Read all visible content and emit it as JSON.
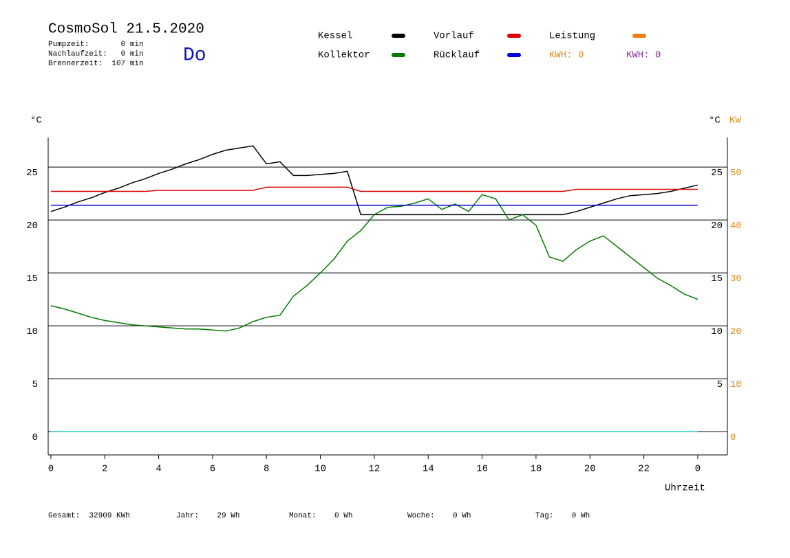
{
  "header": {
    "title": "CosmoSol 21.5.2020",
    "day": "Do",
    "stats": [
      "Pumpzeit:       0 min",
      "Nachlaufzeit:   0 min",
      "Brennerzeit:  107 min"
    ]
  },
  "kwh_labels": [
    {
      "text": "KWH: 0",
      "color": "#e08a1a"
    },
    {
      "text": "KWH: 0",
      "color": "#8a2a9a"
    }
  ],
  "footer": [
    "Gesamt:  32909 KWh",
    "Jahr:    29 Wh",
    "Monat:    0 Wh",
    "Woche:    0 Wh",
    "Tag:    0 Wh"
  ],
  "chart_data": {
    "type": "line",
    "y_label": "°C",
    "y2_unit_label": "°C",
    "y2_label": "KW",
    "x_label": "Uhrzeit",
    "x": [
      0,
      0.5,
      1,
      1.5,
      2,
      2.5,
      3,
      3.5,
      4,
      4.5,
      5,
      5.5,
      6,
      6.5,
      7,
      7.5,
      8,
      8.5,
      9,
      9.5,
      10,
      10.5,
      11,
      11.5,
      12,
      12.5,
      13,
      13.5,
      14,
      14.5,
      15,
      15.5,
      16,
      16.5,
      17,
      17.5,
      18,
      18.5,
      19,
      19.5,
      20,
      20.5,
      21,
      21.5,
      22,
      22.5,
      23,
      23.5,
      24
    ],
    "xlim": [
      -0.1,
      25.1
    ],
    "xticks": [
      0,
      2,
      4,
      6,
      8,
      10,
      12,
      14,
      16,
      18,
      20,
      22,
      {
        "value": 24,
        "label": "0"
      }
    ],
    "ylim": [
      -2.2,
      27.8
    ],
    "yticks": [
      0,
      5,
      10,
      15,
      20,
      25
    ],
    "yticks_right": [
      5,
      10,
      15,
      20,
      25
    ],
    "y2lim": [
      -4.4,
      55.6
    ],
    "y2ticks": [
      0,
      10,
      20,
      30,
      40,
      50
    ],
    "grid": true,
    "series": [
      {
        "name": "Kessel",
        "color": "#000000",
        "values": [
          20.8,
          21.2,
          21.7,
          22.1,
          22.6,
          23.0,
          23.5,
          23.9,
          24.4,
          24.8,
          25.3,
          25.7,
          26.2,
          26.6,
          26.8,
          27.0,
          25.3,
          25.5,
          24.2,
          24.2,
          24.3,
          24.4,
          24.6,
          20.5,
          20.5,
          20.5,
          20.5,
          20.5,
          20.5,
          20.5,
          20.5,
          20.5,
          20.5,
          20.5,
          20.5,
          20.5,
          20.5,
          20.5,
          20.5,
          20.8,
          21.2,
          21.6,
          22.0,
          22.3,
          22.4,
          22.5,
          22.7,
          23.0,
          23.3
        ]
      },
      {
        "name": "Kollektor",
        "color": "#007a00",
        "values": [
          11.9,
          11.6,
          11.2,
          10.8,
          10.5,
          10.3,
          10.1,
          10.0,
          9.9,
          9.8,
          9.7,
          9.7,
          9.6,
          9.5,
          9.8,
          10.4,
          10.8,
          11.0,
          12.8,
          13.8,
          15.0,
          16.3,
          18.0,
          19.0,
          20.5,
          21.2,
          21.3,
          21.6,
          22.0,
          21.0,
          21.5,
          20.8,
          22.4,
          22.0,
          20.0,
          20.5,
          19.5,
          16.5,
          16.1,
          17.2,
          18.0,
          18.5,
          17.5,
          16.5,
          15.5,
          14.5,
          13.8,
          13.0,
          12.5
        ]
      },
      {
        "name": "Vorlauf",
        "color": "#e00000",
        "values": [
          22.7,
          22.7,
          22.7,
          22.7,
          22.7,
          22.7,
          22.7,
          22.7,
          22.8,
          22.8,
          22.8,
          22.8,
          22.8,
          22.8,
          22.8,
          22.8,
          23.1,
          23.1,
          23.1,
          23.1,
          23.1,
          23.1,
          23.1,
          22.7,
          22.7,
          22.7,
          22.7,
          22.7,
          22.7,
          22.7,
          22.7,
          22.7,
          22.7,
          22.7,
          22.7,
          22.7,
          22.7,
          22.7,
          22.7,
          22.9,
          22.9,
          22.9,
          22.9,
          22.9,
          22.9,
          22.9,
          22.9,
          22.9,
          22.9
        ]
      },
      {
        "name": "Rücklauf",
        "color": "#0000e0",
        "values": [
          21.4,
          21.4,
          21.4,
          21.4,
          21.4,
          21.4,
          21.4,
          21.4,
          21.4,
          21.4,
          21.4,
          21.4,
          21.4,
          21.4,
          21.4,
          21.4,
          21.4,
          21.4,
          21.4,
          21.4,
          21.4,
          21.4,
          21.4,
          21.4,
          21.4,
          21.4,
          21.4,
          21.4,
          21.4,
          21.4,
          21.4,
          21.4,
          21.4,
          21.4,
          21.4,
          21.4,
          21.4,
          21.4,
          21.4,
          21.4,
          21.4,
          21.4,
          21.4,
          21.4,
          21.4,
          21.4,
          21.4,
          21.4,
          21.4
        ]
      },
      {
        "name": "Leistung",
        "color": "#f08010",
        "axis": "y2",
        "values": [
          null,
          null,
          null,
          null,
          null,
          null,
          null,
          null,
          null,
          null,
          null,
          null,
          null,
          null,
          null,
          null,
          null,
          null,
          null,
          null,
          null,
          null,
          null,
          null,
          null,
          null,
          null,
          null,
          null,
          null,
          null,
          null,
          null,
          null,
          null,
          null,
          null,
          null,
          null,
          null,
          null,
          null,
          null,
          null,
          null,
          null,
          null,
          null,
          null
        ]
      },
      {
        "color": "#20d0d0",
        "values": [
          0,
          0,
          0,
          0,
          0,
          0,
          0,
          0,
          0,
          0,
          0,
          0,
          0,
          0,
          0,
          0,
          0,
          0,
          0,
          0,
          0,
          0,
          0,
          0,
          0,
          0,
          0,
          0,
          0,
          0,
          0,
          0,
          0,
          0,
          0,
          0,
          0,
          0,
          0,
          0,
          0,
          0,
          0,
          0,
          0,
          0,
          0,
          0,
          0
        ]
      }
    ]
  }
}
